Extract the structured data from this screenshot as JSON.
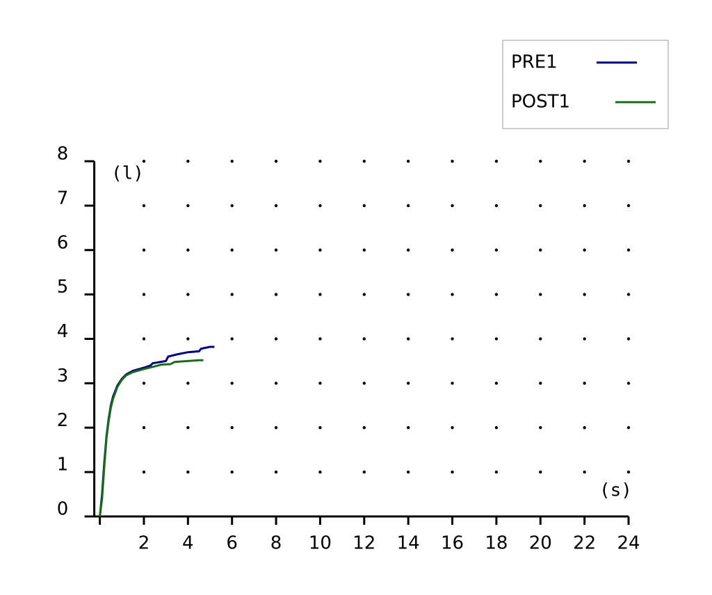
{
  "chart_data": {
    "type": "line",
    "x_label": "(s)",
    "y_label": "(l)",
    "xlim": [
      0,
      24
    ],
    "ylim": [
      0,
      8
    ],
    "xticks": [
      2,
      4,
      6,
      8,
      10,
      12,
      14,
      16,
      18,
      20,
      22,
      24
    ],
    "yticks": [
      0,
      1,
      2,
      3,
      4,
      5,
      6,
      7,
      8
    ],
    "grid": "dots",
    "legend": "upper right",
    "series": [
      {
        "name": "PRE1",
        "color": "#00007f",
        "x": [
          0,
          0.1,
          0.2,
          0.3,
          0.4,
          0.5,
          0.6,
          0.8,
          1.0,
          1.2,
          1.5,
          2.0,
          2.3,
          2.4,
          3.0,
          3.1,
          3.5,
          4.0,
          4.5,
          4.6,
          5.0,
          5.2
        ],
        "values": [
          0,
          0.5,
          1.2,
          1.8,
          2.2,
          2.5,
          2.7,
          2.95,
          3.1,
          3.2,
          3.28,
          3.35,
          3.4,
          3.45,
          3.5,
          3.6,
          3.65,
          3.7,
          3.72,
          3.78,
          3.82,
          3.82
        ]
      },
      {
        "name": "POST1",
        "color": "#1a6b1a",
        "x": [
          0,
          0.1,
          0.2,
          0.3,
          0.4,
          0.5,
          0.6,
          0.8,
          1.0,
          1.2,
          1.5,
          2.0,
          2.5,
          2.8,
          3.2,
          3.4,
          4.0,
          4.5,
          4.7
        ],
        "values": [
          0,
          0.4,
          1.1,
          1.75,
          2.15,
          2.45,
          2.65,
          2.92,
          3.08,
          3.18,
          3.25,
          3.32,
          3.38,
          3.42,
          3.43,
          3.48,
          3.5,
          3.52,
          3.52
        ]
      }
    ]
  }
}
